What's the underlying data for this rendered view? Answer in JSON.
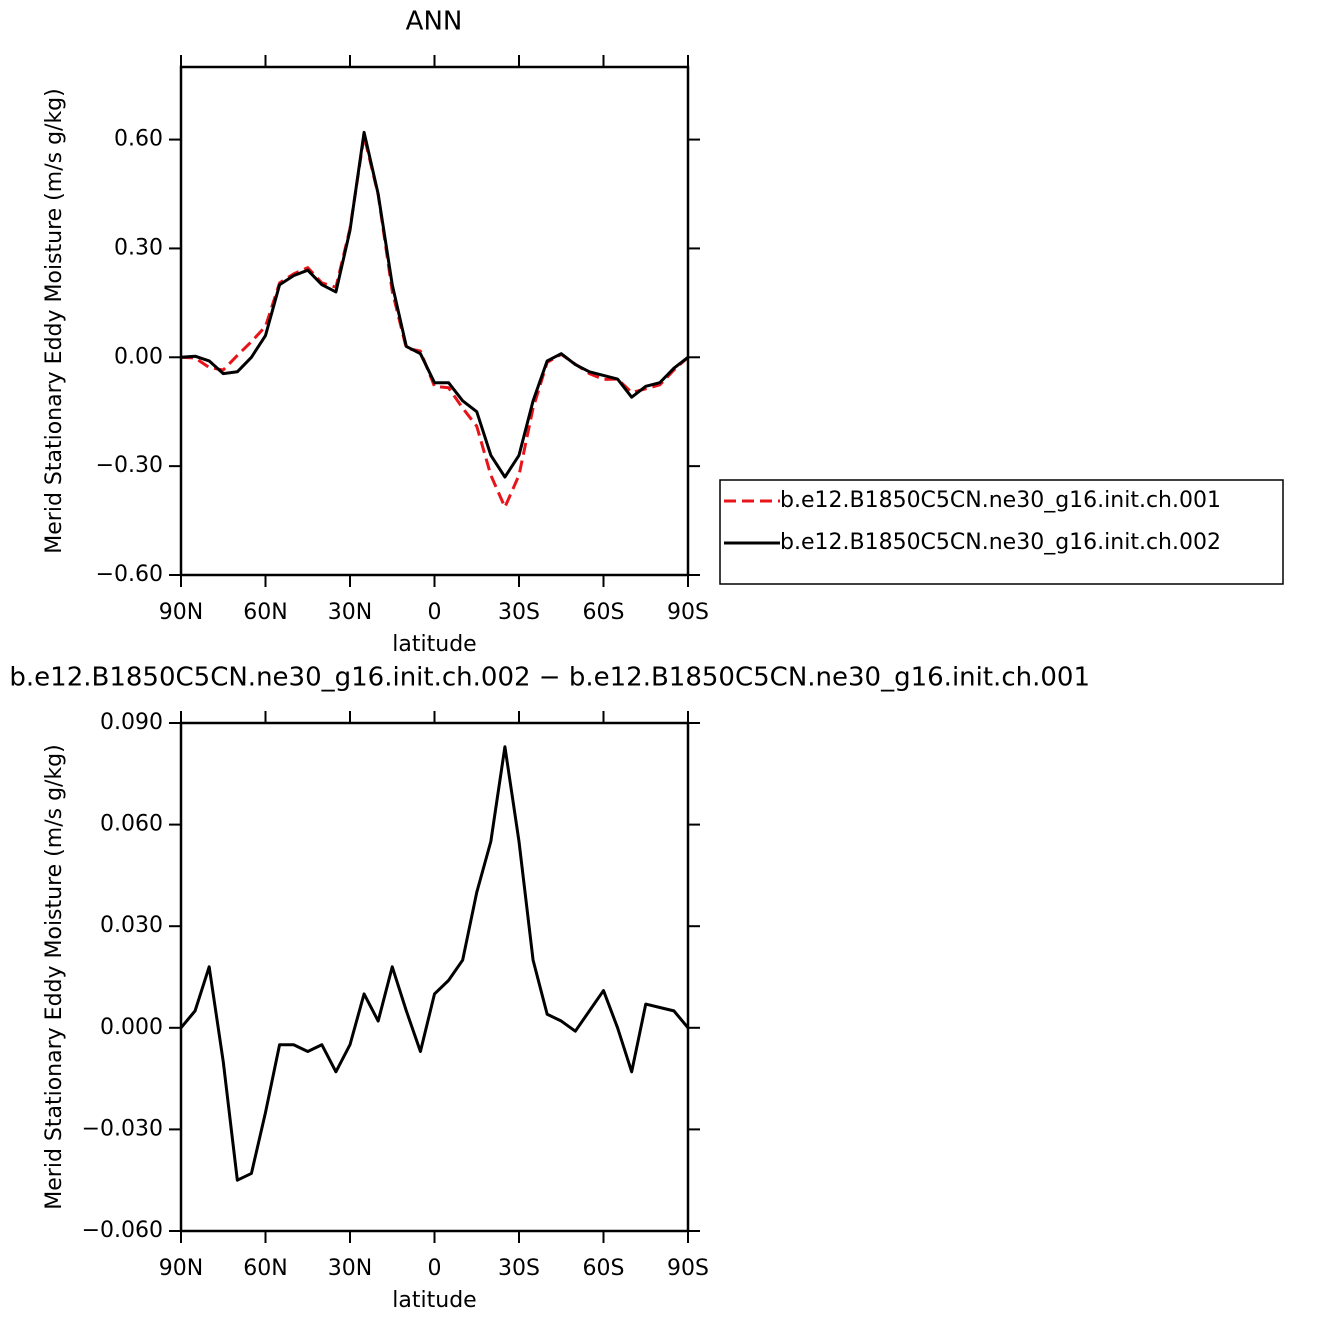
{
  "chart_data": [
    {
      "type": "line",
      "title": "ANN",
      "x_label": "latitude",
      "y_label": "Merid Stationary Eddy Moisture (m/s g/kg)",
      "x": [
        90,
        85,
        80,
        75,
        70,
        65,
        60,
        55,
        50,
        45,
        40,
        35,
        30,
        25,
        20,
        15,
        10,
        5,
        0,
        -5,
        -10,
        -15,
        -20,
        -25,
        -30,
        -35,
        -40,
        -45,
        -50,
        -55,
        -60,
        -65,
        -70,
        -75,
        -80,
        -85,
        -90
      ],
      "series": [
        {
          "name": "b.e12.B1850C5CN.ne30_g16.init.ch.001",
          "color": "#e8141a",
          "style": "dashed",
          "values": [
            0,
            -0.002,
            -0.028,
            -0.035,
            0.005,
            0.043,
            0.085,
            0.205,
            0.23,
            0.247,
            0.205,
            0.193,
            0.355,
            0.61,
            0.448,
            0.182,
            0.025,
            0.017,
            -0.08,
            -0.084,
            -0.14,
            -0.19,
            -0.325,
            -0.413,
            -0.325,
            -0.14,
            -0.014,
            0.008,
            -0.019,
            -0.045,
            -0.061,
            -0.06,
            -0.097,
            -0.087,
            -0.076,
            -0.035,
            0
          ]
        },
        {
          "name": "b.e12.B1850C5CN.ne30_g16.init.ch.002",
          "color": "#000000",
          "style": "solid",
          "values": [
            0,
            0.003,
            -0.01,
            -0.045,
            -0.04,
            0,
            0.06,
            0.2,
            0.225,
            0.24,
            0.2,
            0.18,
            0.35,
            0.62,
            0.45,
            0.2,
            0.03,
            0.01,
            -0.07,
            -0.07,
            -0.12,
            -0.15,
            -0.27,
            -0.33,
            -0.27,
            -0.12,
            -0.01,
            0.01,
            -0.02,
            -0.04,
            -0.05,
            -0.06,
            -0.11,
            -0.08,
            -0.07,
            -0.03,
            0
          ]
        }
      ],
      "xlim": [
        90,
        -90
      ],
      "xticks": [
        {
          "value": 90,
          "label": "90N"
        },
        {
          "value": 60,
          "label": "60N"
        },
        {
          "value": 30,
          "label": "30N"
        },
        0,
        {
          "value": -30,
          "label": "30S"
        },
        {
          "value": -60,
          "label": "60S"
        },
        {
          "value": -90,
          "label": "90S"
        }
      ],
      "ylim": [
        -0.6,
        0.8
      ],
      "yticks": [
        {
          "value": -0.6,
          "label": "−0.60"
        },
        {
          "value": -0.3,
          "label": "−0.30"
        },
        {
          "value": 0,
          "label": "0.00"
        },
        {
          "value": 0.3,
          "label": "0.30"
        },
        {
          "value": 0.6,
          "label": "0.60"
        }
      ],
      "legend": "right"
    },
    {
      "type": "line",
      "title": "b.e12.B1850C5CN.ne30_g16.init.ch.002 − b.e12.B1850C5CN.ne30_g16.init.ch.001",
      "x_label": "latitude",
      "y_label": "Merid Stationary Eddy Moisture (m/s g/kg)",
      "x": [
        90,
        85,
        80,
        75,
        70,
        65,
        60,
        55,
        50,
        45,
        40,
        35,
        30,
        25,
        20,
        15,
        10,
        5,
        0,
        -5,
        -10,
        -15,
        -20,
        -25,
        -30,
        -35,
        -40,
        -45,
        -50,
        -55,
        -60,
        -65,
        -70,
        -75,
        -80,
        -85,
        -90
      ],
      "series": [
        {
          "color": "#000000",
          "style": "solid",
          "values": [
            0,
            0.005,
            0.018,
            -0.01,
            -0.045,
            -0.043,
            -0.025,
            -0.005,
            -0.005,
            -0.007,
            -0.005,
            -0.013,
            -0.005,
            0.01,
            0.002,
            0.018,
            0.005,
            -0.007,
            0.01,
            0.014,
            0.02,
            0.04,
            0.055,
            0.083,
            0.055,
            0.02,
            0.004,
            0.002,
            -0.001,
            0.005,
            0.011,
            0,
            -0.013,
            0.007,
            0.006,
            0.005,
            0
          ]
        }
      ],
      "xlim": [
        90,
        -90
      ],
      "xticks": [
        {
          "value": 90,
          "label": "90N"
        },
        {
          "value": 60,
          "label": "60N"
        },
        {
          "value": 30,
          "label": "30N"
        },
        0,
        {
          "value": -30,
          "label": "30S"
        },
        {
          "value": -60,
          "label": "60S"
        },
        {
          "value": -90,
          "label": "90S"
        }
      ],
      "ylim": [
        -0.06,
        0.09
      ],
      "yticks": [
        {
          "value": -0.06,
          "label": "−0.060"
        },
        {
          "value": -0.03,
          "label": "−0.030"
        },
        {
          "value": 0,
          "label": "0.000"
        },
        {
          "value": 0.03,
          "label": "0.030"
        },
        {
          "value": 0.06,
          "label": "0.060"
        },
        {
          "value": 0.09,
          "label": "0.090"
        }
      ]
    }
  ]
}
